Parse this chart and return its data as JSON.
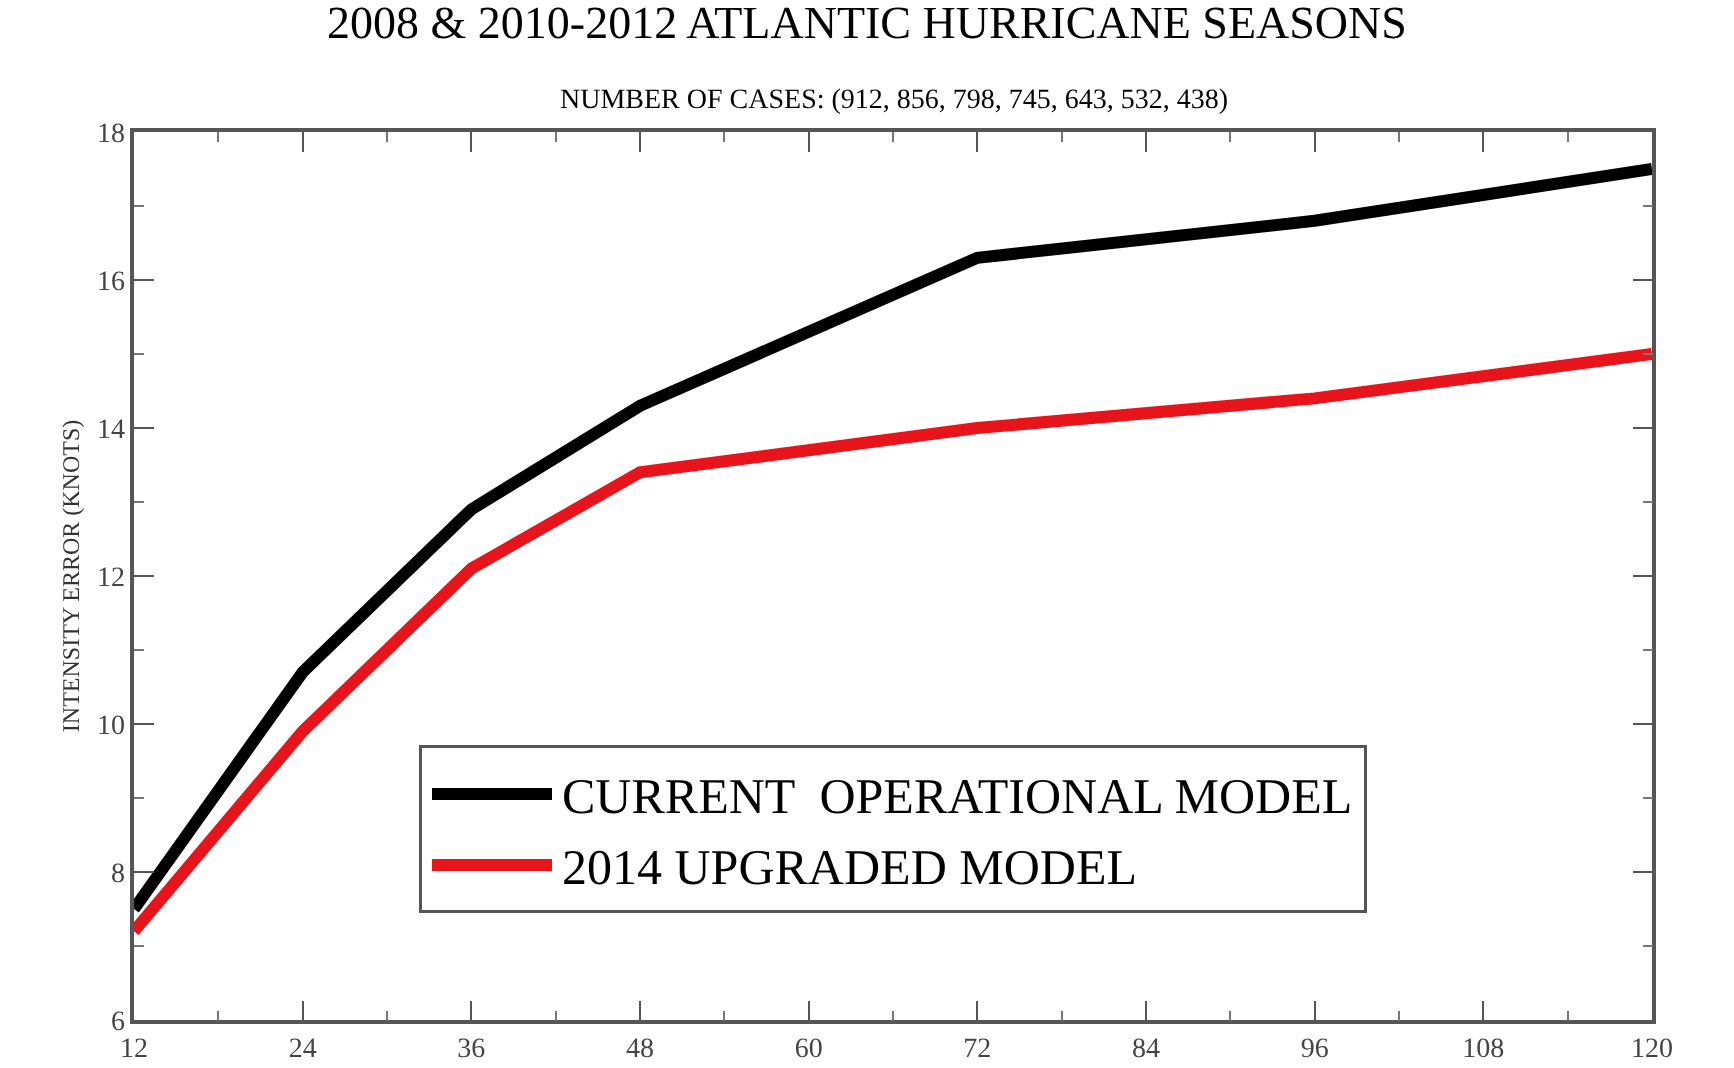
{
  "chart_data": {
    "type": "line",
    "title": "2008 & 2010-2012 ATLANTIC HURRICANE SEASONS",
    "subtitle": "NUMBER OF CASES: (912, 856, 798, 745, 643, 532, 438)",
    "ylabel": "INTENSITY ERROR (KNOTS)",
    "x": [
      12,
      24,
      36,
      48,
      72,
      96,
      120
    ],
    "series": [
      {
        "name": "CURRENT  OPERATIONAL MODEL",
        "color": "#000000",
        "values": [
          7.5,
          10.7,
          12.9,
          14.3,
          16.3,
          16.8,
          17.5
        ]
      },
      {
        "name": "2014 UPGRADED MODEL",
        "color": "#e8141b",
        "values": [
          7.2,
          9.9,
          12.1,
          13.4,
          14.0,
          14.4,
          15.0
        ]
      }
    ],
    "xlim": [
      12,
      120
    ],
    "xticks": [
      12,
      24,
      36,
      48,
      60,
      72,
      84,
      96,
      108,
      120
    ],
    "ylim": [
      6,
      18
    ],
    "yticks": [
      6,
      8,
      10,
      12,
      14,
      16,
      18
    ],
    "grid": false,
    "legend": "bottom",
    "marker": "none",
    "line_style": "solid"
  }
}
